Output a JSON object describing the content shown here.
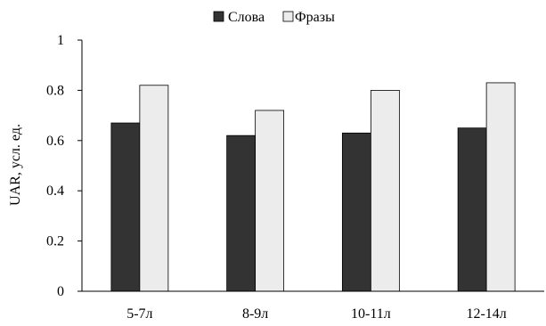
{
  "chart_data": {
    "type": "bar",
    "categories": [
      "5-7л",
      "8-9л",
      "10-11л",
      "12-14л"
    ],
    "series": [
      {
        "name": "Слова",
        "values": [
          0.67,
          0.62,
          0.63,
          0.65
        ],
        "color": "#333333"
      },
      {
        "name": "Фразы",
        "values": [
          0.82,
          0.72,
          0.8,
          0.83
        ],
        "color": "#ececec"
      }
    ],
    "yticks": [
      "0",
      "0.2",
      "0.4",
      "0.6",
      "0.8",
      "1"
    ],
    "ylim": [
      0,
      1
    ],
    "ylabel": "UAR, усл. ед.",
    "xlabel": "",
    "title": "",
    "legend": "top",
    "grid": false
  }
}
